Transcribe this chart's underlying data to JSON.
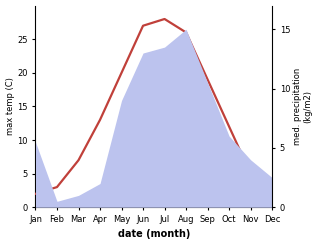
{
  "months": [
    "Jan",
    "Feb",
    "Mar",
    "Apr",
    "May",
    "Jun",
    "Jul",
    "Aug",
    "Sep",
    "Oct",
    "Nov",
    "Dec"
  ],
  "temperature": [
    2.0,
    3.0,
    7.0,
    13.0,
    20.0,
    27.0,
    28.0,
    26.0,
    19.0,
    12.0,
    5.0,
    1.5
  ],
  "precipitation": [
    5.5,
    0.5,
    1.0,
    2.0,
    9.0,
    13.0,
    13.5,
    15.0,
    10.5,
    6.0,
    4.0,
    2.5
  ],
  "temp_color": "#c0403a",
  "precip_fill_color": "#bcc3ee",
  "temp_ylim": [
    0,
    30
  ],
  "precip_ylim": [
    0,
    17
  ],
  "temp_yticks": [
    0,
    5,
    10,
    15,
    20,
    25
  ],
  "precip_yticks": [
    0,
    5,
    10,
    15
  ],
  "ylabel_left": "max temp (C)",
  "ylabel_right": "med. precipitation\n(kg/m2)",
  "xlabel": "date (month)",
  "bg_color": "#ffffff",
  "line_width": 1.6
}
